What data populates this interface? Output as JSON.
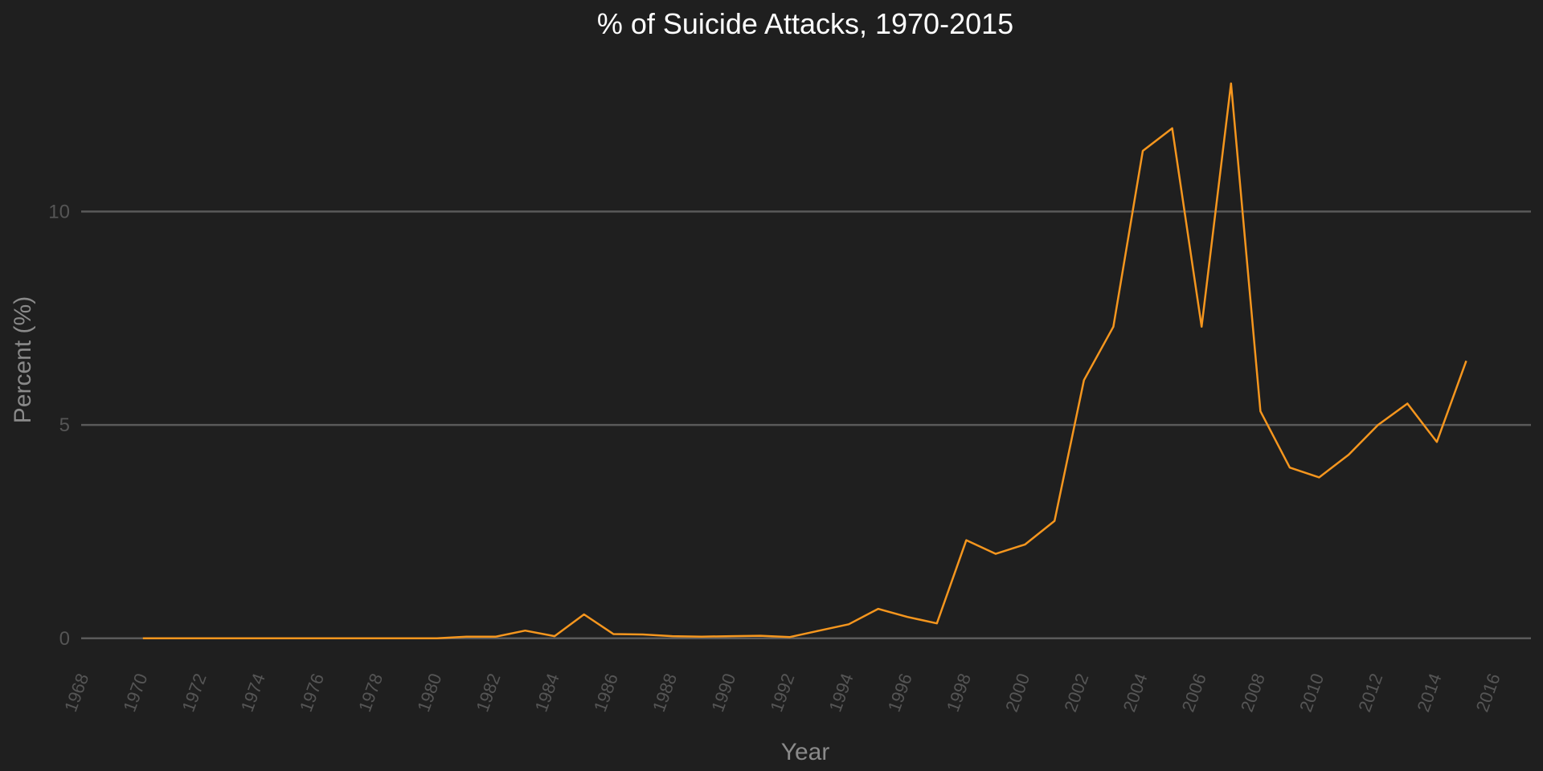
{
  "chart_data": {
    "type": "line",
    "title": "% of Suicide Attacks, 1970-2015",
    "xlabel": "Year",
    "ylabel": "Percent (%)",
    "xlim": [
      1967.9,
      2017.2
    ],
    "ylim": [
      -0.7,
      13.6
    ],
    "x_ticks": [
      1968,
      1970,
      1972,
      1974,
      1976,
      1978,
      1980,
      1982,
      1984,
      1986,
      1988,
      1990,
      1992,
      1994,
      1996,
      1998,
      2000,
      2002,
      2004,
      2006,
      2008,
      2010,
      2012,
      2014,
      2016
    ],
    "y_ticks": [
      0,
      5,
      10
    ],
    "grid": "horizontal",
    "line_color": "#f5961e",
    "series": [
      {
        "x": [
          1970,
          1971,
          1972,
          1973,
          1974,
          1975,
          1976,
          1977,
          1978,
          1979,
          1980,
          1981,
          1982,
          1983,
          1984,
          1985,
          1986,
          1987,
          1988,
          1989,
          1990,
          1991,
          1992,
          1993,
          1994,
          1995,
          1996,
          1997,
          1998,
          1999,
          2000,
          2001,
          2002,
          2003,
          2004,
          2005,
          2006,
          2007,
          2008,
          2009,
          2010,
          2011,
          2012,
          2013,
          2014,
          2015
        ],
        "values": [
          0,
          0,
          0,
          0,
          0,
          0,
          0,
          0,
          0,
          0,
          0,
          0.04,
          0.04,
          0.18,
          0.05,
          0.56,
          0.1,
          0.09,
          0.05,
          0.04,
          0.05,
          0.06,
          0.03,
          0.18,
          0.33,
          0.69,
          0.5,
          0.35,
          2.3,
          1.98,
          2.2,
          2.75,
          6.05,
          7.3,
          11.42,
          11.95,
          7.3,
          13.0,
          5.32,
          4.0,
          3.77,
          4.3,
          5.0,
          5.5,
          4.6,
          6.5
        ]
      }
    ]
  }
}
